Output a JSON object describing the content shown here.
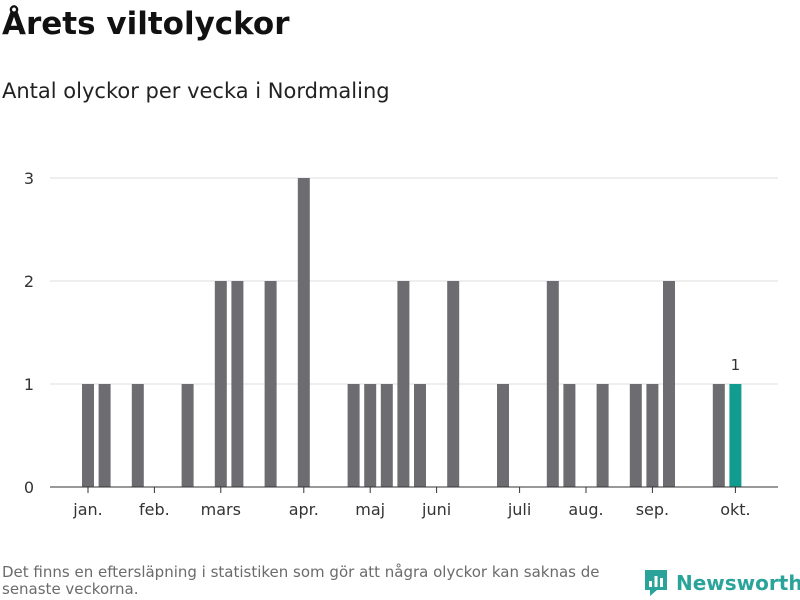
{
  "header": {
    "title": "Årets viltolyckor",
    "subtitle": "Antal olyckor per vecka i Nordmaling"
  },
  "footer": {
    "note": "Det finns en eftersläpning i statistiken som gör att några olyckor kan saknas de senaste veckorna.",
    "brand": "Newsworthy"
  },
  "colors": {
    "bar": "#6d6c70",
    "highlight": "#119c8f",
    "grid": "#dddddd",
    "brand": "#2aa39b"
  },
  "chart_data": {
    "type": "bar",
    "title": "Årets viltolyckor",
    "subtitle": "Antal olyckor per vecka i Nordmaling",
    "xlabel": "",
    "ylabel": "",
    "ylim": [
      0,
      3
    ],
    "yticks": [
      "0",
      "1",
      "2",
      "3"
    ],
    "grid": true,
    "x_unit": "week",
    "month_labels": [
      {
        "label": "jan.",
        "week": 1
      },
      {
        "label": "feb.",
        "week": 5
      },
      {
        "label": "mars",
        "week": 9
      },
      {
        "label": "apr.",
        "week": 14
      },
      {
        "label": "maj",
        "week": 18
      },
      {
        "label": "juni",
        "week": 22
      },
      {
        "label": "juli",
        "week": 27
      },
      {
        "label": "aug.",
        "week": 31
      },
      {
        "label": "sep.",
        "week": 35
      },
      {
        "label": "okt.",
        "week": 40
      }
    ],
    "bars": [
      {
        "week": 1,
        "value": 1
      },
      {
        "week": 2,
        "value": 1
      },
      {
        "week": 4,
        "value": 1
      },
      {
        "week": 7,
        "value": 1
      },
      {
        "week": 9,
        "value": 2
      },
      {
        "week": 10,
        "value": 2
      },
      {
        "week": 12,
        "value": 2
      },
      {
        "week": 14,
        "value": 3
      },
      {
        "week": 17,
        "value": 1
      },
      {
        "week": 18,
        "value": 1
      },
      {
        "week": 19,
        "value": 1
      },
      {
        "week": 20,
        "value": 2
      },
      {
        "week": 21,
        "value": 1
      },
      {
        "week": 23,
        "value": 2
      },
      {
        "week": 26,
        "value": 1
      },
      {
        "week": 29,
        "value": 2
      },
      {
        "week": 30,
        "value": 1
      },
      {
        "week": 32,
        "value": 1
      },
      {
        "week": 34,
        "value": 1
      },
      {
        "week": 35,
        "value": 1
      },
      {
        "week": 36,
        "value": 2
      },
      {
        "week": 39,
        "value": 1
      },
      {
        "week": 40,
        "value": 1,
        "highlight": true,
        "label": "1"
      }
    ]
  }
}
